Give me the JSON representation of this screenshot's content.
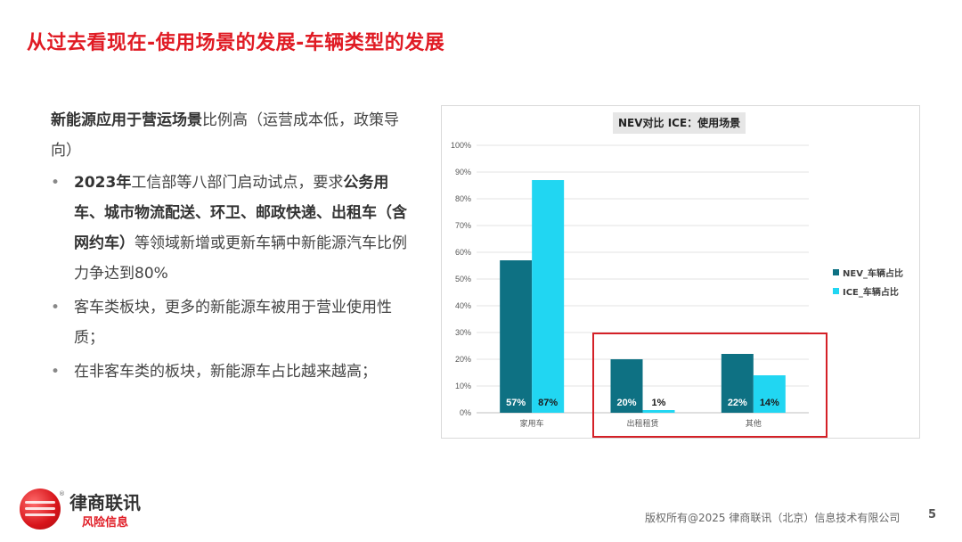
{
  "slide": {
    "title": "从过去看现在-使用场景的发展-车辆类型的发展",
    "lead_bold": "新能源应用于营运场景",
    "lead_rest": "比例高（运营成本低，政策导向）",
    "bullets": [
      {
        "parts": [
          {
            "t": "2023年",
            "b": true
          },
          {
            "t": "工信部等八部门启动试点，要求",
            "b": false
          },
          {
            "t": "公务用车、城市物流配送、环卫、邮政快递、出租车（含网约车）",
            "b": true
          },
          {
            "t": "等领域新增或更新车辆中新能源汽车比例力争达到80%",
            "b": false
          }
        ]
      },
      {
        "parts": [
          {
            "t": "客车类板块，更多的新能源车被用于营业使用性质；",
            "b": false
          }
        ]
      },
      {
        "parts": [
          {
            "t": "在非客车类的板块，新能源车占比越来越高；",
            "b": false
          }
        ]
      }
    ]
  },
  "colors": {
    "accent_red": "#e01b24",
    "nev": "#0e7183",
    "ice": "#21d6f2",
    "highlight_box": "#d42027"
  },
  "chart_data": {
    "type": "bar",
    "title": "NEV对比 ICE：使用场景",
    "categories": [
      "家用车",
      "出租租赁",
      "其他"
    ],
    "series": [
      {
        "name": "NEV_车辆占比",
        "values": [
          57,
          20,
          22
        ],
        "labels": [
          "57%",
          "20%",
          "22%"
        ]
      },
      {
        "name": "ICE_车辆占比",
        "values": [
          87,
          1,
          14
        ],
        "labels": [
          "87%",
          "1%",
          "14%"
        ]
      }
    ],
    "ylim": [
      0,
      100
    ],
    "yticks": [
      "0%",
      "10%",
      "20%",
      "30%",
      "40%",
      "50%",
      "60%",
      "70%",
      "80%",
      "90%",
      "100%"
    ],
    "grid": true,
    "legend": "right",
    "highlight": "出租租赁 and 其他 groups outlined"
  },
  "footer": {
    "copyright": "版权所有@2025 律商联讯（北京）信息技术有限公司",
    "page": "5",
    "brand_name": "律商联讯",
    "brand_sub": "风险信息",
    "brand_reg": "®"
  }
}
